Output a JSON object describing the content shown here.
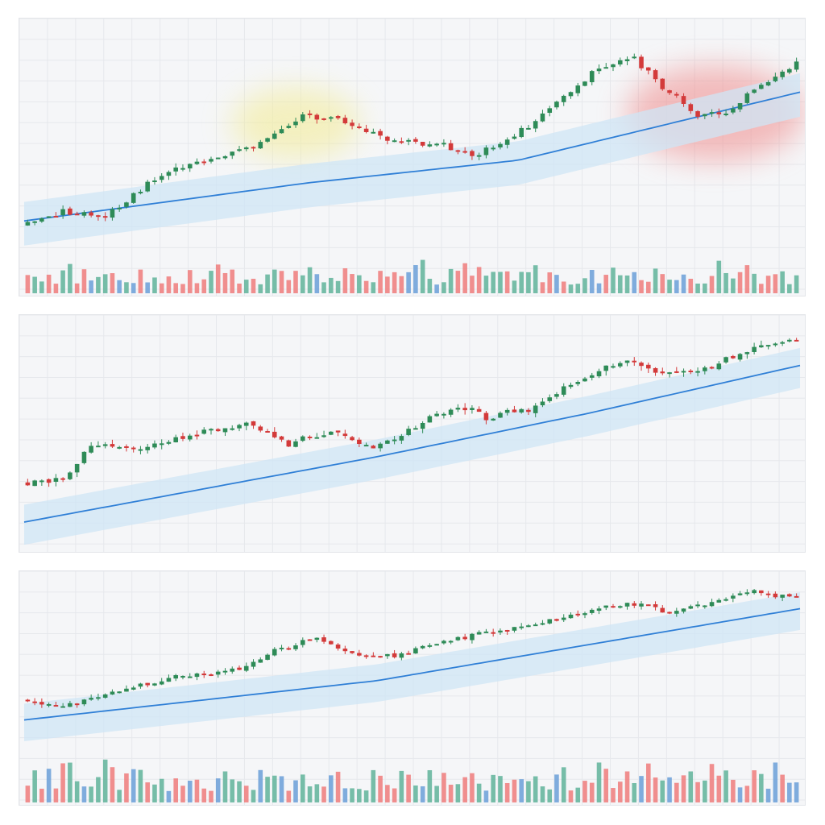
{
  "colors": {
    "up": "#2e8b57",
    "down": "#d33a3a",
    "ma_line": "#2f7fd6",
    "band": "#cfe5f5",
    "grid": "#e6e8ec",
    "background": "#f5f6f8",
    "highlight_yellow": "#f3ec9a",
    "highlight_red": "#f08a8a",
    "volume_up": "#5fb39a",
    "volume_down": "#ee7b7b",
    "volume_blue": "#6a9fd8"
  },
  "chart_data": [
    {
      "type": "candlestick",
      "title": "",
      "xlabel": "",
      "ylabel": "",
      "n": 110,
      "grid": true,
      "volume": true,
      "moving_average": true,
      "band": true,
      "highlights": [
        {
          "color": "yellow",
          "from_bar": 30,
          "to_bar": 46
        },
        {
          "color": "red",
          "from_bar": 86,
          "to_bar": 109
        }
      ],
      "anchors": [
        [
          0,
          18
        ],
        [
          6,
          25
        ],
        [
          12,
          22
        ],
        [
          20,
          45
        ],
        [
          26,
          52
        ],
        [
          33,
          60
        ],
        [
          40,
          76
        ],
        [
          46,
          73
        ],
        [
          52,
          62
        ],
        [
          60,
          60
        ],
        [
          64,
          54
        ],
        [
          72,
          70
        ],
        [
          81,
          98
        ],
        [
          87,
          106
        ],
        [
          90,
          94
        ],
        [
          96,
          76
        ],
        [
          100,
          78
        ],
        [
          110,
          104
        ]
      ],
      "ma": [
        [
          0,
          20
        ],
        [
          40,
          40
        ],
        [
          70,
          52
        ],
        [
          110,
          88
        ]
      ],
      "band_width": 10,
      "ylim": [
        0,
        115
      ]
    },
    {
      "type": "candlestick",
      "title": "",
      "xlabel": "",
      "ylabel": "",
      "n": 110,
      "grid": true,
      "volume": false,
      "moving_average": true,
      "band": true,
      "highlights": [],
      "anchors": [
        [
          0,
          28
        ],
        [
          6,
          30
        ],
        [
          10,
          46
        ],
        [
          18,
          44
        ],
        [
          24,
          50
        ],
        [
          32,
          55
        ],
        [
          38,
          46
        ],
        [
          44,
          52
        ],
        [
          50,
          44
        ],
        [
          56,
          54
        ],
        [
          62,
          64
        ],
        [
          66,
          58
        ],
        [
          72,
          62
        ],
        [
          82,
          80
        ],
        [
          86,
          84
        ],
        [
          92,
          78
        ],
        [
          98,
          82
        ],
        [
          104,
          90
        ],
        [
          110,
          94
        ]
      ],
      "ma": [
        [
          0,
          10
        ],
        [
          50,
          40
        ],
        [
          80,
          60
        ],
        [
          110,
          82
        ]
      ],
      "band_width": 8,
      "ylim": [
        0,
        100
      ]
    },
    {
      "type": "candlestick",
      "title": "",
      "xlabel": "",
      "ylabel": "",
      "n": 110,
      "grid": true,
      "volume": true,
      "moving_average": true,
      "band": true,
      "highlights": [],
      "anchors": [
        [
          0,
          36
        ],
        [
          6,
          32
        ],
        [
          14,
          42
        ],
        [
          22,
          50
        ],
        [
          30,
          54
        ],
        [
          36,
          66
        ],
        [
          42,
          74
        ],
        [
          48,
          62
        ],
        [
          54,
          64
        ],
        [
          62,
          74
        ],
        [
          70,
          80
        ],
        [
          78,
          88
        ],
        [
          86,
          96
        ],
        [
          92,
          90
        ],
        [
          98,
          96
        ],
        [
          104,
          102
        ],
        [
          110,
          98
        ]
      ],
      "ma": [
        [
          0,
          24
        ],
        [
          50,
          48
        ],
        [
          80,
          70
        ],
        [
          110,
          92
        ]
      ],
      "band_width": 10,
      "ylim": [
        0,
        110
      ]
    }
  ]
}
